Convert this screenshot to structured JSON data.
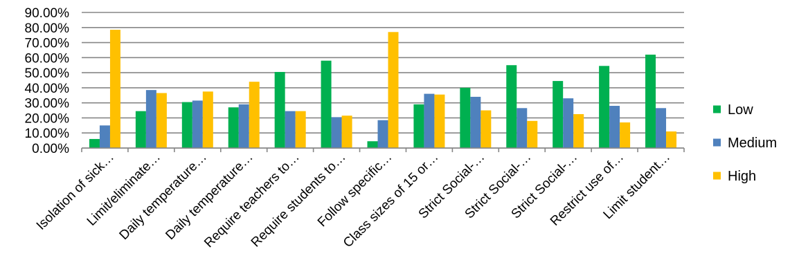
{
  "chart_data": {
    "type": "bar",
    "title": "",
    "xlabel": "",
    "ylabel": "",
    "ylim": [
      0,
      0.9
    ],
    "yticks": [
      0,
      0.1,
      0.2,
      0.3,
      0.4,
      0.5,
      0.6,
      0.7,
      0.8,
      0.9
    ],
    "ytick_labels": [
      "0.00%",
      "10.00%",
      "20.00%",
      "30.00%",
      "40.00%",
      "50.00%",
      "60.00%",
      "70.00%",
      "80.00%",
      "90.00%"
    ],
    "grid": true,
    "legend_position": "right",
    "categories": [
      "Isolation of sick…",
      "Limit/eliminate…",
      "Daily temperature…",
      "Daily temperature…",
      "Require teachers to…",
      "Require students to…",
      "Follow specific…",
      "Class sizes of 15 or…",
      "Strict Social-…",
      "Strict Social-…",
      "Strict Social-…",
      "Restrict use of…",
      "Limit student…"
    ],
    "series": [
      {
        "name": "Low",
        "color": "#00B050",
        "values": [
          0.06,
          0.245,
          0.305,
          0.27,
          0.505,
          0.58,
          0.045,
          0.29,
          0.4,
          0.55,
          0.445,
          0.545,
          0.62
        ]
      },
      {
        "name": "Medium",
        "color": "#4F81BD",
        "values": [
          0.15,
          0.385,
          0.315,
          0.29,
          0.245,
          0.205,
          0.185,
          0.36,
          0.34,
          0.265,
          0.33,
          0.28,
          0.265
        ]
      },
      {
        "name": "High",
        "color": "#FFC000",
        "values": [
          0.785,
          0.365,
          0.375,
          0.44,
          0.245,
          0.215,
          0.77,
          0.355,
          0.25,
          0.18,
          0.225,
          0.17,
          0.11
        ]
      }
    ]
  }
}
